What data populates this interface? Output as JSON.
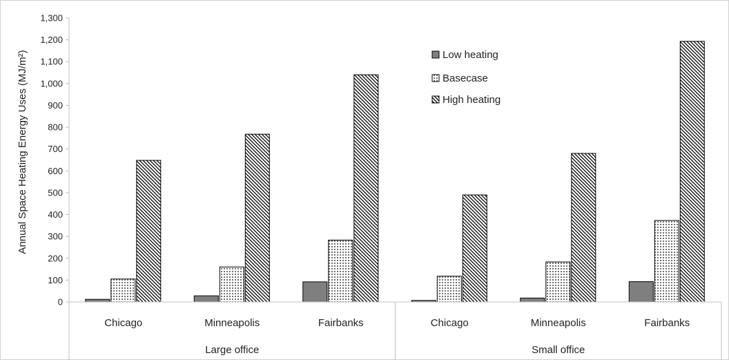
{
  "chart_data": {
    "type": "bar",
    "title": "",
    "xlabel": "",
    "ylabel": "Annual Space Heating Energy Uses (MJ/m²)",
    "ylim": [
      0,
      1300
    ],
    "ytick_step": 100,
    "ytick_labels": [
      "0",
      "100",
      "200",
      "300",
      "400",
      "500",
      "600",
      "700",
      "800",
      "900",
      "1,000",
      "1,100",
      "1,200",
      "1,300"
    ],
    "groups": [
      {
        "name": "Large office",
        "categories": [
          "Chicago",
          "Minneapolis",
          "Fairbanks"
        ]
      },
      {
        "name": "Small office",
        "categories": [
          "Chicago",
          "Minneapolis",
          "Fairbanks"
        ]
      }
    ],
    "categories": [
      "Chicago",
      "Minneapolis",
      "Fairbanks",
      "Chicago",
      "Minneapolis",
      "Fairbanks"
    ],
    "series": [
      {
        "name": "Low heating",
        "pattern": "solid-gray",
        "values": [
          12,
          28,
          92,
          7,
          18,
          93
        ]
      },
      {
        "name": "Basecase",
        "pattern": "dotted-grid",
        "values": [
          105,
          160,
          283,
          118,
          183,
          373
        ]
      },
      {
        "name": "High heating",
        "pattern": "diagonal-hatch",
        "values": [
          648,
          768,
          1040,
          490,
          680,
          1193
        ]
      }
    ],
    "legend": {
      "position": "inside-top-center"
    },
    "grid": false,
    "colors": {
      "low": "#7f7f7f",
      "outline": "#000000",
      "axis": "#bfbfbf"
    }
  }
}
